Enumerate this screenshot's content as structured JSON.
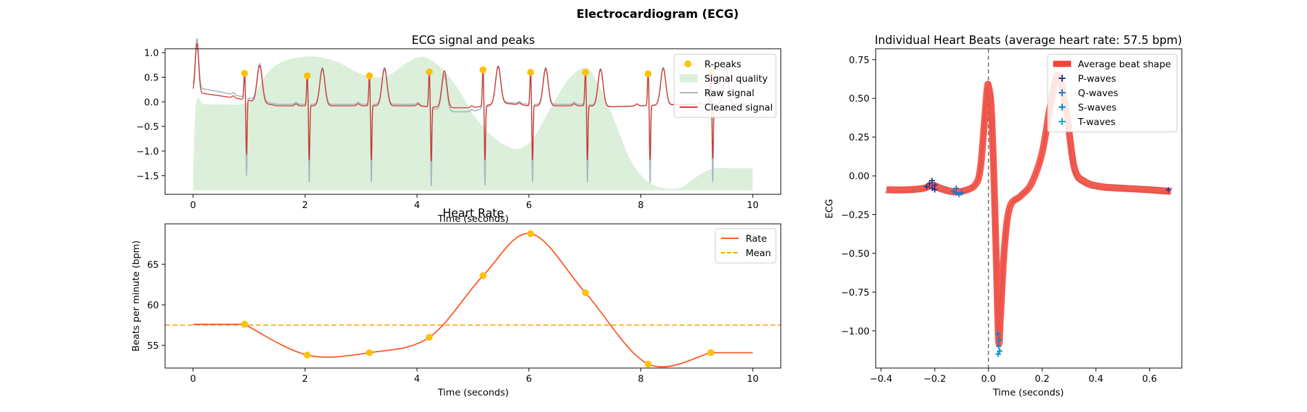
{
  "figure": {
    "suptitle": "Electrocardiogram (ECG)"
  },
  "chart_data": [
    {
      "id": "ecg",
      "type": "line",
      "title": "ECG signal and peaks",
      "xlabel": "Time (seconds)",
      "ylabel": "",
      "xlim": [
        -0.5,
        10.5
      ],
      "ylim": [
        -1.88,
        1.08
      ],
      "xticks": [
        0,
        2,
        4,
        6,
        8,
        10
      ],
      "yticks": [
        1.0,
        0.5,
        0.0,
        -0.5,
        -1.0,
        -1.5
      ],
      "grid": false,
      "legend_position": "top-right",
      "series": [
        {
          "name": "R-peaks",
          "kind": "scatter",
          "color": "#ffc107",
          "x": [
            0.92,
            2.04,
            3.15,
            4.22,
            5.18,
            6.03,
            7.01,
            8.13,
            9.25
          ],
          "y": [
            0.58,
            0.53,
            0.53,
            0.61,
            0.65,
            0.6,
            0.6,
            0.57,
            0.6
          ]
        },
        {
          "name": "Signal quality",
          "kind": "area",
          "color": "#dcefdb",
          "x": [
            0,
            0.05,
            0.2,
            0.5,
            0.85,
            1.05,
            1.3,
            1.6,
            2.0,
            2.3,
            2.6,
            2.9,
            3.2,
            3.5,
            3.8,
            4.0,
            4.2,
            4.5,
            4.8,
            5.0,
            5.3,
            5.6,
            5.85,
            6.1,
            6.4,
            6.7,
            7.0,
            7.2,
            7.5,
            7.8,
            8.1,
            8.4,
            8.7,
            8.9,
            9.1,
            9.3,
            9.6,
            10.0
          ],
          "y": [
            -1.8,
            -0.05,
            -0.05,
            -0.05,
            -0.05,
            0.05,
            0.55,
            0.82,
            0.92,
            0.9,
            0.8,
            0.62,
            0.5,
            0.55,
            0.78,
            0.9,
            0.88,
            0.62,
            0.15,
            -0.25,
            -0.65,
            -0.9,
            -0.95,
            -0.7,
            -0.1,
            0.45,
            0.7,
            0.45,
            -0.3,
            -1.15,
            -1.6,
            -1.75,
            -1.75,
            -1.6,
            -1.45,
            -1.35,
            -1.35,
            -1.35
          ]
        },
        {
          "name": "Raw signal",
          "kind": "line",
          "color": "#a7b6c2",
          "baseline_x": [
            0,
            0.5,
            0.9,
            1.5,
            2.0,
            2.5,
            3.0,
            3.5,
            4.0,
            4.5,
            5.0,
            5.5,
            6.0,
            6.5,
            7.0,
            7.5,
            8.0,
            8.5,
            9.0,
            9.3,
            10.0
          ],
          "baseline_y": [
            0.3,
            0.2,
            0.1,
            -0.05,
            -0.05,
            -0.05,
            -0.05,
            -0.05,
            -0.05,
            -0.2,
            -0.2,
            0.0,
            -0.05,
            -0.05,
            -0.05,
            -0.1,
            -0.08,
            -0.05,
            -0.05,
            -0.05,
            -0.05
          ]
        },
        {
          "name": "Cleaned signal",
          "kind": "line",
          "color": "#d1352b",
          "baseline_x": [
            0,
            0.5,
            0.9,
            1.5,
            2.0,
            2.5,
            3.0,
            3.5,
            4.0,
            4.5,
            5.0,
            5.5,
            6.0,
            6.5,
            7.0,
            7.5,
            8.0,
            8.5,
            9.0,
            9.3,
            10.0
          ],
          "baseline_y": [
            0.2,
            0.12,
            0.05,
            -0.08,
            -0.08,
            -0.08,
            -0.08,
            -0.08,
            -0.08,
            -0.12,
            -0.12,
            -0.02,
            -0.08,
            -0.08,
            -0.08,
            -0.1,
            -0.08,
            -0.06,
            -0.05,
            -0.05,
            -0.05
          ]
        }
      ]
    },
    {
      "id": "rate",
      "type": "line",
      "title": "Heart Rate",
      "xlabel": "Time (seconds)",
      "ylabel": "Beats per minute (bpm)",
      "xlim": [
        -0.5,
        10.5
      ],
      "ylim": [
        52.2,
        70.0
      ],
      "xticks": [
        0,
        2,
        4,
        6,
        8,
        10
      ],
      "yticks": [
        55,
        60,
        65
      ],
      "grid": false,
      "legend_position": "top-right",
      "series": [
        {
          "name": "Rate",
          "kind": "line",
          "color": "#ff5722",
          "x": [
            0,
            0.92,
            2.04,
            3.15,
            4.22,
            5.18,
            6.03,
            7.01,
            8.13,
            9.25,
            10.0
          ],
          "y": [
            57.6,
            57.6,
            53.8,
            54.1,
            56.0,
            63.6,
            68.8,
            61.5,
            52.7,
            54.1,
            54.1
          ]
        },
        {
          "name": "",
          "kind": "scatter",
          "color": "#ffc107",
          "x": [
            0.92,
            2.04,
            3.15,
            4.22,
            5.18,
            6.03,
            7.01,
            8.13,
            9.25
          ],
          "y": [
            57.6,
            53.8,
            54.1,
            56.0,
            63.6,
            68.8,
            61.5,
            52.7,
            54.1
          ]
        },
        {
          "name": "Mean",
          "kind": "hline",
          "color": "#ffa000",
          "value": 57.5
        }
      ]
    },
    {
      "id": "beats",
      "type": "line",
      "title": "Individual Heart Beats (average heart rate: 57.5 bpm)",
      "xlabel": "Time (seconds)",
      "ylabel": "ECG",
      "xlim": [
        -0.42,
        0.72
      ],
      "ylim": [
        -1.24,
        0.82
      ],
      "xticks": [
        -0.4,
        -0.2,
        0.0,
        0.2,
        0.4,
        0.6
      ],
      "yticks": [
        0.75,
        0.5,
        0.25,
        0.0,
        -0.25,
        -0.5,
        -0.75,
        -1.0
      ],
      "grid": false,
      "legend_position": "top-right",
      "series": [
        {
          "name": "Average beat shape",
          "kind": "line",
          "color": "#f44336",
          "x": [
            -0.38,
            -0.3,
            -0.24,
            -0.21,
            -0.18,
            -0.14,
            -0.1,
            -0.05,
            -0.03,
            -0.015,
            -0.005,
            0.0,
            0.01,
            0.02,
            0.03,
            0.038,
            0.045,
            0.06,
            0.08,
            0.12,
            0.16,
            0.2,
            0.23,
            0.26,
            0.29,
            0.32,
            0.36,
            0.42,
            0.5,
            0.6,
            0.68
          ],
          "y": [
            -0.09,
            -0.09,
            -0.08,
            -0.06,
            -0.08,
            -0.1,
            -0.1,
            -0.06,
            0.05,
            0.35,
            0.56,
            0.58,
            0.45,
            0.0,
            -0.6,
            -1.07,
            -0.9,
            -0.45,
            -0.2,
            -0.13,
            -0.05,
            0.15,
            0.45,
            0.65,
            0.42,
            0.05,
            -0.04,
            -0.07,
            -0.08,
            -0.09,
            -0.1
          ]
        },
        {
          "name": "P-waves",
          "kind": "marker",
          "color": "#283593",
          "x": [
            -0.22,
            -0.21,
            -0.2,
            -0.23,
            -0.21,
            -0.2,
            0.67
          ],
          "y": [
            -0.05,
            -0.03,
            -0.06,
            -0.07,
            -0.08,
            -0.09,
            -0.09
          ]
        },
        {
          "name": "Q-waves",
          "kind": "marker",
          "color": "#1976d2",
          "x": [
            -0.13,
            -0.12,
            -0.11,
            -0.1,
            -0.12
          ],
          "y": [
            -0.1,
            -0.11,
            -0.12,
            -0.11,
            -0.08
          ]
        },
        {
          "name": "S-waves",
          "kind": "marker",
          "color": "#0288d1",
          "x": [
            0.035,
            0.04,
            0.038,
            0.042,
            0.036
          ],
          "y": [
            -1.02,
            -1.06,
            -1.1,
            -1.13,
            -1.15
          ]
        },
        {
          "name": "T-waves",
          "kind": "marker",
          "color": "#00acc1",
          "x": [],
          "y": []
        }
      ]
    }
  ]
}
